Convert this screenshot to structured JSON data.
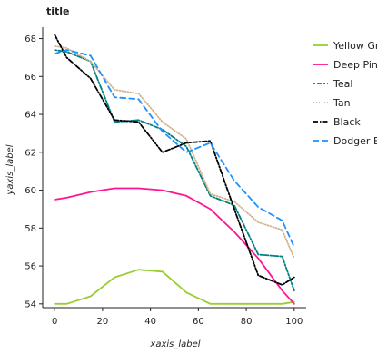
{
  "chart_data": {
    "type": "line",
    "title": "title",
    "xlabel": "xaxis_label",
    "ylabel": "yaxis_label",
    "xlim": [
      -5,
      105
    ],
    "ylim": [
      53.8,
      68.6
    ],
    "xticks": [
      0,
      20,
      40,
      60,
      80,
      100
    ],
    "yticks": [
      54,
      56,
      58,
      60,
      62,
      64,
      66,
      68
    ],
    "grid": false,
    "legend_position": "right",
    "series": [
      {
        "name": "Yellow Green",
        "color": "#9acd32",
        "dash": "",
        "x": [
          0,
          5,
          15,
          25,
          35,
          45,
          55,
          65,
          75,
          85,
          95,
          100
        ],
        "y": [
          54.0,
          54.0,
          54.4,
          55.4,
          55.8,
          55.7,
          54.6,
          54.0,
          54.0,
          54.0,
          54.0,
          54.1
        ]
      },
      {
        "name": "Deep Pink",
        "color": "#ff1493",
        "dash": "",
        "x": [
          0,
          5,
          15,
          25,
          35,
          45,
          55,
          65,
          75,
          85,
          95,
          100
        ],
        "y": [
          59.5,
          59.6,
          59.9,
          60.1,
          60.1,
          60.0,
          59.7,
          59.0,
          57.8,
          56.4,
          54.7,
          54.0
        ]
      },
      {
        "name": "Teal",
        "color": "#008080",
        "dash": "2,2,5,2",
        "x": [
          0,
          5,
          15,
          25,
          35,
          45,
          55,
          65,
          75,
          85,
          95,
          100
        ],
        "y": [
          67.4,
          67.3,
          66.8,
          63.6,
          63.7,
          63.2,
          62.3,
          59.7,
          59.2,
          56.6,
          56.5,
          54.7
        ]
      },
      {
        "name": "Tan",
        "color": "#d2b48c",
        "dash": "1,2",
        "x": [
          0,
          5,
          15,
          25,
          35,
          45,
          55,
          65,
          75,
          85,
          95,
          100
        ],
        "y": [
          67.6,
          67.5,
          66.8,
          65.3,
          65.1,
          63.6,
          62.7,
          59.8,
          59.4,
          58.3,
          57.9,
          56.4
        ]
      },
      {
        "name": "Black",
        "color": "#000000",
        "dash": "5,2,1.5,2",
        "x": [
          0,
          5,
          15,
          25,
          35,
          45,
          55,
          65,
          75,
          85,
          95,
          100
        ],
        "y": [
          68.2,
          67.0,
          65.9,
          63.7,
          63.6,
          62.0,
          62.5,
          62.6,
          59.0,
          55.5,
          55.0,
          55.4
        ]
      },
      {
        "name": "Dodger Blue",
        "color": "#1e90ff",
        "dash": "6,4",
        "x": [
          0,
          5,
          15,
          25,
          35,
          45,
          55,
          65,
          75,
          85,
          95,
          100
        ],
        "y": [
          67.2,
          67.4,
          67.1,
          64.9,
          64.8,
          63.1,
          62.0,
          62.5,
          60.5,
          59.1,
          58.4,
          57.0
        ]
      }
    ]
  }
}
